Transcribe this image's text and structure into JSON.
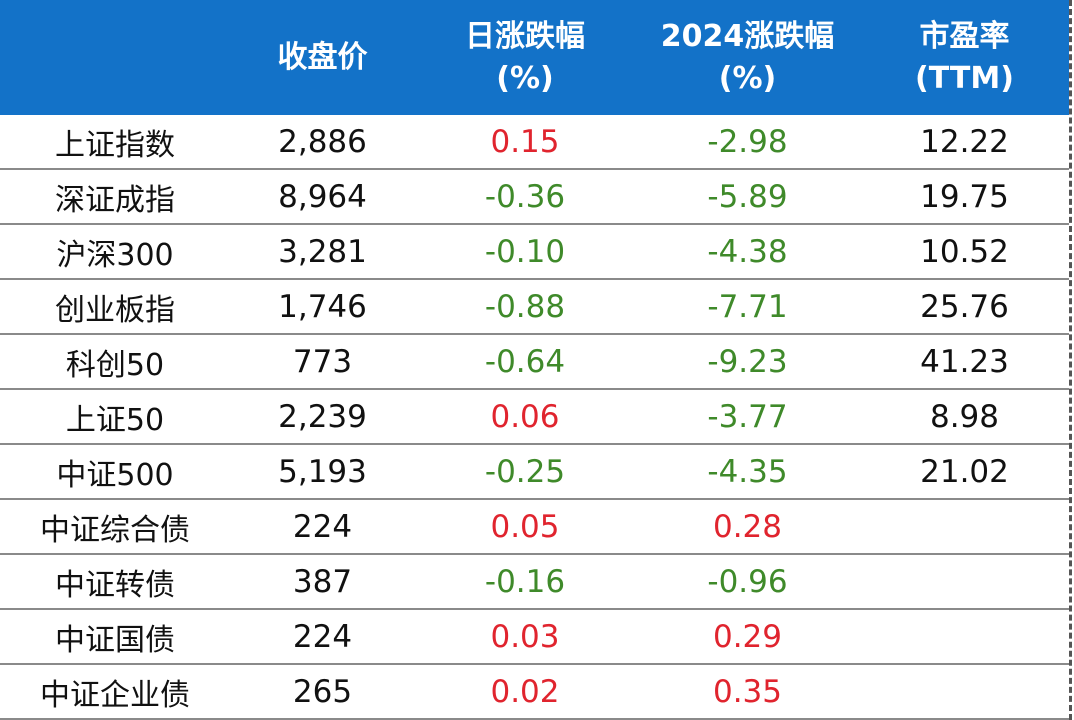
{
  "table": {
    "headers": [
      "",
      "收盘价",
      "日涨跌幅\n(%)",
      "2024涨跌幅\n(%)",
      "市盈率\n(TTM)"
    ],
    "rows": [
      [
        "上证指数",
        "2,886",
        "0.15",
        "-2.98",
        "12.22"
      ],
      [
        "深证成指",
        "8,964",
        "-0.36",
        "-5.89",
        "19.75"
      ],
      [
        "沪深300",
        "3,281",
        "-0.10",
        "-4.38",
        "10.52"
      ],
      [
        "创业板指",
        "1,746",
        "-0.88",
        "-7.71",
        "25.76"
      ],
      [
        "科创50",
        "773",
        "-0.64",
        "-9.23",
        "41.23"
      ],
      [
        "上证50",
        "2,239",
        "0.06",
        "-3.77",
        "8.98"
      ],
      [
        "中证500",
        "5,193",
        "-0.25",
        "-4.35",
        "21.02"
      ],
      [
        "中证综合债",
        "224",
        "0.05",
        "0.28",
        ""
      ],
      [
        "中证转债",
        "387",
        "-0.16",
        "-0.96",
        ""
      ],
      [
        "中证国债",
        "224",
        "0.03",
        "0.29",
        ""
      ],
      [
        "中证企业债",
        "265",
        "0.02",
        "0.35",
        ""
      ]
    ]
  },
  "colors": {
    "header_bg": "#1372c8",
    "header_text": "#ffffff",
    "positive": "#e0242e",
    "negative": "#3f8a2a",
    "text": "#111111"
  }
}
